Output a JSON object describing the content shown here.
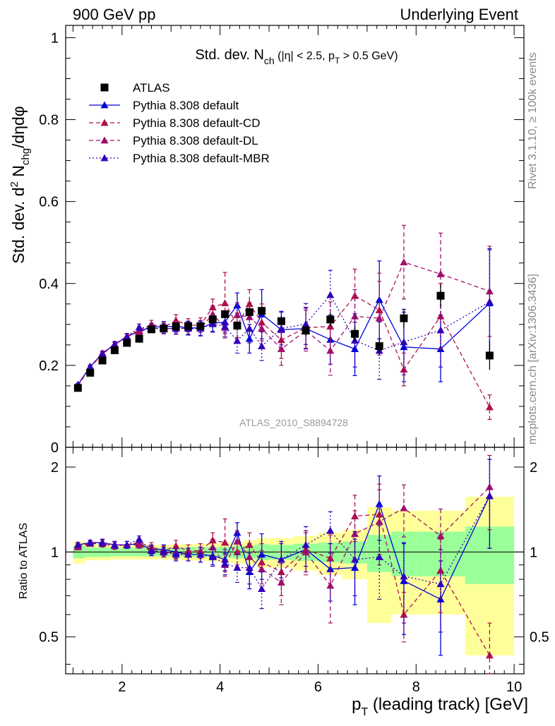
{
  "header": {
    "left": "900 GeV pp",
    "right": "Underlying Event"
  },
  "side_labels": {
    "top": "Rivet 3.1.10, ≥ 100k events",
    "bottom": "mcplots.cern.ch [arXiv:1306.3436]"
  },
  "analysis_id": "ATLAS_2010_S8894728",
  "colors": {
    "atlas": "#000000",
    "default": "#0000dd",
    "cd": "#b0104a",
    "dl": "#a0106a",
    "mbr": "#3300bb",
    "band_inner": "#99ff99",
    "band_outer": "#ffff99"
  },
  "chart_data": [
    {
      "type": "scatter",
      "title": {
        "prefix": "Std. dev. N",
        "sub": "ch",
        "cut": " (|η| < 2.5, p",
        "cut_sub": "T",
        "cut_end": " > 0.5 GeV)"
      },
      "ylabel": {
        "a": "Std. dev. d",
        "sup": "2",
        "b": " N",
        "sub": "chg",
        "c": "/dηdφ"
      },
      "ylim": [
        0,
        1.03
      ],
      "xlim": [
        0.85,
        10.2
      ],
      "yticks": [
        "0",
        "0.2",
        "0.4",
        "0.6",
        "0.8",
        "1"
      ],
      "grid": false,
      "legend_position": "top-left",
      "x": [
        1.1,
        1.35,
        1.6,
        1.85,
        2.1,
        2.35,
        2.6,
        2.85,
        3.1,
        3.35,
        3.6,
        3.85,
        4.1,
        4.35,
        4.6,
        4.85,
        5.25,
        5.75,
        6.25,
        6.75,
        7.25,
        7.75,
        8.5,
        9.5
      ],
      "series": [
        {
          "name": "ATLAS",
          "key": "atlas",
          "marker": "square",
          "line": "none",
          "values": [
            0.145,
            0.182,
            0.212,
            0.237,
            0.255,
            0.265,
            0.288,
            0.29,
            0.295,
            0.296,
            0.296,
            0.312,
            0.325,
            0.297,
            0.33,
            0.333,
            0.308,
            0.285,
            0.312,
            0.277,
            0.247,
            0.315,
            0.37,
            0.224
          ],
          "errors": [
            0.003,
            0.003,
            0.003,
            0.004,
            0.004,
            0.004,
            0.005,
            0.005,
            0.006,
            0.006,
            0.007,
            0.008,
            0.009,
            0.01,
            0.011,
            0.012,
            0.012,
            0.014,
            0.016,
            0.018,
            0.02,
            0.022,
            0.028,
            0.035
          ]
        },
        {
          "name": "Pythia 8.308 default",
          "key": "default",
          "marker": "triangle",
          "line": "solid",
          "values": [
            0.153,
            0.197,
            0.229,
            0.251,
            0.27,
            0.284,
            0.293,
            0.295,
            0.295,
            0.292,
            0.291,
            0.303,
            0.306,
            0.347,
            0.265,
            0.325,
            0.287,
            0.29,
            0.263,
            0.24,
            0.36,
            0.245,
            0.24,
            0.352
          ],
          "errors": [
            0.003,
            0.004,
            0.005,
            0.006,
            0.007,
            0.008,
            0.01,
            0.012,
            0.014,
            0.016,
            0.018,
            0.02,
            0.025,
            0.03,
            0.035,
            0.06,
            0.045,
            0.05,
            0.06,
            0.065,
            0.095,
            0.085,
            0.08,
            0.13
          ]
        },
        {
          "name": "Pythia 8.308 default-CD",
          "key": "cd",
          "marker": "triangle",
          "line": "dashed",
          "values": [
            0.152,
            0.196,
            0.23,
            0.252,
            0.271,
            0.286,
            0.3,
            0.293,
            0.31,
            0.298,
            0.298,
            0.342,
            0.352,
            0.298,
            0.35,
            0.305,
            0.262,
            0.292,
            0.295,
            0.37,
            0.335,
            0.19,
            0.32,
            0.098
          ],
          "errors": [
            0.003,
            0.004,
            0.005,
            0.006,
            0.007,
            0.008,
            0.01,
            0.012,
            0.014,
            0.016,
            0.018,
            0.02,
            0.075,
            0.03,
            0.035,
            0.045,
            0.045,
            0.05,
            0.06,
            0.065,
            0.09,
            0.04,
            0.08,
            0.03
          ]
        },
        {
          "name": "Pythia 8.308 default-DL",
          "key": "dl",
          "marker": "triangle",
          "line": "dashed",
          "values": [
            0.15,
            0.195,
            0.228,
            0.25,
            0.27,
            0.282,
            0.291,
            0.289,
            0.291,
            0.29,
            0.29,
            0.325,
            0.292,
            0.323,
            0.318,
            0.29,
            0.24,
            0.285,
            0.236,
            0.32,
            0.315,
            0.452,
            0.423,
            0.381
          ],
          "errors": [
            0.003,
            0.004,
            0.005,
            0.006,
            0.007,
            0.008,
            0.01,
            0.012,
            0.014,
            0.016,
            0.018,
            0.02,
            0.025,
            0.03,
            0.035,
            0.045,
            0.04,
            0.05,
            0.06,
            0.065,
            0.09,
            0.09,
            0.1,
            0.11
          ]
        },
        {
          "name": "Pythia 8.308 default-MBR",
          "key": "mbr",
          "marker": "triangle",
          "line": "dotted",
          "values": [
            0.153,
            0.197,
            0.229,
            0.252,
            0.27,
            0.293,
            0.29,
            0.29,
            0.29,
            0.29,
            0.29,
            0.301,
            0.295,
            0.26,
            0.29,
            0.247,
            0.29,
            0.301,
            0.372,
            0.261,
            0.236,
            0.257,
            0.286,
            0.355
          ],
          "errors": [
            0.003,
            0.004,
            0.005,
            0.006,
            0.007,
            0.008,
            0.01,
            0.012,
            0.014,
            0.016,
            0.018,
            0.02,
            0.025,
            0.03,
            0.035,
            0.035,
            0.04,
            0.05,
            0.06,
            0.065,
            0.07,
            0.08,
            0.09,
            0.13
          ]
        }
      ]
    },
    {
      "type": "scatter",
      "ylabel": "Ratio to ATLAS",
      "xlabel": {
        "a": "p",
        "sub": "T",
        "b": " (leading track) [GeV]"
      },
      "xlim": [
        0.85,
        10.2
      ],
      "ylim": [
        0.37,
        2.35
      ],
      "yticks": [
        "0.5",
        "1",
        "2"
      ],
      "xticks": [
        "2",
        "4",
        "6",
        "8",
        "10"
      ],
      "reference": 1,
      "band_edges": [
        1.0,
        1.25,
        1.5,
        1.75,
        2.0,
        2.25,
        2.5,
        2.75,
        3.0,
        3.25,
        3.5,
        3.75,
        4.0,
        4.25,
        4.5,
        4.75,
        5.0,
        5.5,
        6.0,
        6.5,
        7.0,
        7.5,
        8.0,
        9.0,
        10.0
      ],
      "band_inner": [
        0.05,
        0.04,
        0.04,
        0.035,
        0.035,
        0.035,
        0.035,
        0.035,
        0.035,
        0.04,
        0.04,
        0.04,
        0.045,
        0.05,
        0.055,
        0.065,
        0.06,
        0.07,
        0.08,
        0.09,
        0.15,
        0.18,
        0.18,
        0.23
      ],
      "band_outer": [
        0.09,
        0.065,
        0.065,
        0.06,
        0.06,
        0.06,
        0.06,
        0.06,
        0.065,
        0.065,
        0.07,
        0.075,
        0.08,
        0.09,
        0.1,
        0.12,
        0.12,
        0.14,
        0.17,
        0.2,
        0.44,
        0.4,
        0.4,
        0.57
      ],
      "series": [
        {
          "name": "Pythia 8.308 default",
          "key": "default",
          "line": "solid",
          "values": [
            1.06,
            1.08,
            1.08,
            1.06,
            1.06,
            1.07,
            1.02,
            1.02,
            1.0,
            0.98,
            0.98,
            0.97,
            0.94,
            1.17,
            0.85,
            0.98,
            0.94,
            1.02,
            0.87,
            0.88,
            1.48,
            0.79,
            0.68,
            1.58
          ],
          "errors": [
            0.02,
            0.02,
            0.03,
            0.03,
            0.03,
            0.03,
            0.04,
            0.04,
            0.05,
            0.05,
            0.06,
            0.07,
            0.08,
            0.1,
            0.11,
            0.18,
            0.15,
            0.17,
            0.2,
            0.23,
            0.38,
            0.28,
            0.25,
            0.55
          ]
        },
        {
          "name": "Pythia 8.308 default-CD",
          "key": "cd",
          "line": "dashed",
          "values": [
            1.05,
            1.07,
            1.08,
            1.06,
            1.06,
            1.08,
            1.04,
            1.01,
            1.05,
            1.01,
            1.01,
            1.1,
            1.08,
            1.0,
            1.06,
            0.92,
            0.85,
            1.02,
            0.95,
            1.34,
            1.36,
            0.6,
            0.86,
            0.43
          ],
          "errors": [
            0.02,
            0.02,
            0.03,
            0.03,
            0.03,
            0.03,
            0.04,
            0.04,
            0.05,
            0.05,
            0.06,
            0.07,
            0.23,
            0.1,
            0.11,
            0.15,
            0.15,
            0.17,
            0.2,
            0.25,
            0.38,
            0.12,
            0.25,
            0.13
          ]
        },
        {
          "name": "Pythia 8.308 default-DL",
          "key": "dl",
          "line": "dashed",
          "values": [
            1.04,
            1.07,
            1.07,
            1.05,
            1.06,
            1.06,
            1.01,
            1.0,
            0.99,
            0.98,
            0.98,
            1.04,
            0.9,
            1.09,
            0.96,
            0.87,
            0.78,
            1.0,
            0.76,
            1.16,
            1.28,
            1.43,
            1.14,
            1.7
          ],
          "errors": [
            0.02,
            0.02,
            0.03,
            0.03,
            0.03,
            0.03,
            0.04,
            0.04,
            0.05,
            0.05,
            0.06,
            0.07,
            0.08,
            0.1,
            0.11,
            0.14,
            0.13,
            0.17,
            0.2,
            0.24,
            0.38,
            0.3,
            0.28,
            0.5
          ]
        },
        {
          "name": "Pythia 8.308 default-MBR",
          "key": "mbr",
          "line": "dotted",
          "values": [
            1.06,
            1.08,
            1.08,
            1.06,
            1.06,
            1.11,
            1.01,
            1.0,
            0.98,
            0.98,
            0.98,
            0.96,
            0.91,
            0.88,
            0.88,
            0.74,
            0.94,
            1.06,
            1.19,
            0.94,
            0.96,
            0.82,
            0.77,
            1.58
          ],
          "errors": [
            0.02,
            0.02,
            0.03,
            0.03,
            0.03,
            0.03,
            0.04,
            0.04,
            0.05,
            0.05,
            0.06,
            0.07,
            0.08,
            0.1,
            0.11,
            0.11,
            0.13,
            0.17,
            0.2,
            0.24,
            0.28,
            0.26,
            0.25,
            0.55
          ]
        }
      ]
    }
  ]
}
